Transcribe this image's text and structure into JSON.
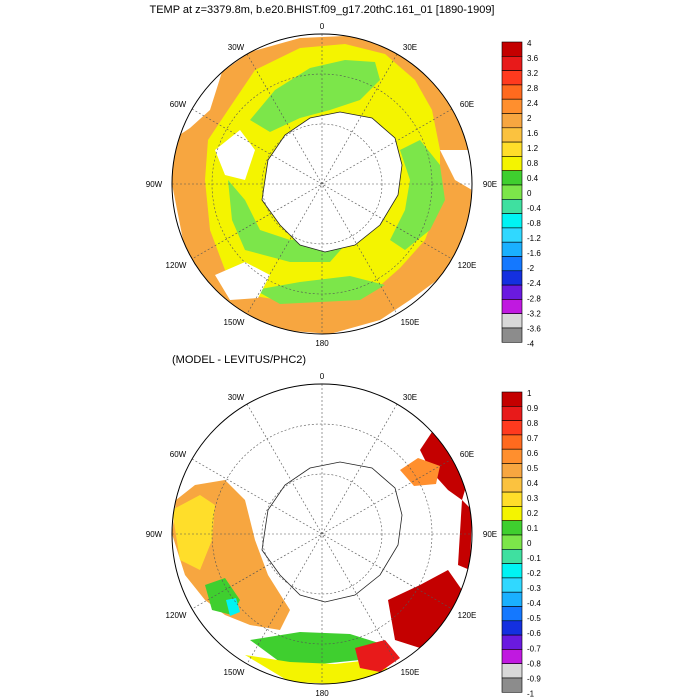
{
  "panels": [
    {
      "title": "TEMP at z=3379.8m, b.e20.BHIST.f09_g17.20thC.161_01 [1890-1909]",
      "longitude_labels": {
        "top": "0",
        "right_top": "30E",
        "right_mid": "60E",
        "right": "90E",
        "right_low": "120E",
        "right_bottom": "150E",
        "bottom": "180",
        "left_bottom": "150W",
        "left_low": "120W",
        "left": "90W",
        "left_mid": "60W",
        "left_top": "30W"
      },
      "colorbar": {
        "labels": [
          "4",
          "3.6",
          "3.2",
          "2.8",
          "2.4",
          "2",
          "1.6",
          "1.2",
          "0.8",
          "0.4",
          "0",
          "-0.4",
          "-0.8",
          "-1.2",
          "-1.6",
          "-2",
          "-2.4",
          "-2.8",
          "-3.2",
          "-3.6",
          "-4"
        ],
        "colors": [
          "#c40000",
          "#e81a1a",
          "#ff3a1e",
          "#ff6a1e",
          "#ff8f2e",
          "#f7a640",
          "#fbc23f",
          "#ffde2a",
          "#f4f400",
          "#3fcf2f",
          "#7ce64a",
          "#3fe0a0",
          "#00f4f4",
          "#30d8ff",
          "#1ab0ff",
          "#1478ff",
          "#1430e0",
          "#6a1ae0",
          "#c019e0",
          "#d8d8d8",
          "#8c8c8c"
        ]
      }
    },
    {
      "title": "(MODEL - LEVITUS/PHC2)",
      "longitude_labels": {
        "top": "0",
        "right_top": "30E",
        "right_mid": "60E",
        "right": "90E",
        "right_low": "120E",
        "right_bottom": "150E",
        "bottom": "180",
        "left_bottom": "150W",
        "left_low": "120W",
        "left": "90W",
        "left_mid": "60W",
        "left_top": "30W"
      },
      "colorbar": {
        "labels": [
          "1",
          "0.9",
          "0.8",
          "0.7",
          "0.6",
          "0.5",
          "0.4",
          "0.3",
          "0.2",
          "0.1",
          "0",
          "-0.1",
          "-0.2",
          "-0.3",
          "-0.4",
          "-0.5",
          "-0.6",
          "-0.7",
          "-0.8",
          "-0.9",
          "-1"
        ],
        "colors": [
          "#c40000",
          "#e81a1a",
          "#ff3a1e",
          "#ff6a1e",
          "#ff8f2e",
          "#f7a640",
          "#fbc23f",
          "#ffde2a",
          "#f4f400",
          "#3fcf2f",
          "#7ce64a",
          "#3fe0a0",
          "#00f4f4",
          "#30d8ff",
          "#1ab0ff",
          "#1478ff",
          "#1430e0",
          "#6a1ae0",
          "#c019e0",
          "#d8d8d8",
          "#8c8c8c"
        ]
      }
    }
  ]
}
